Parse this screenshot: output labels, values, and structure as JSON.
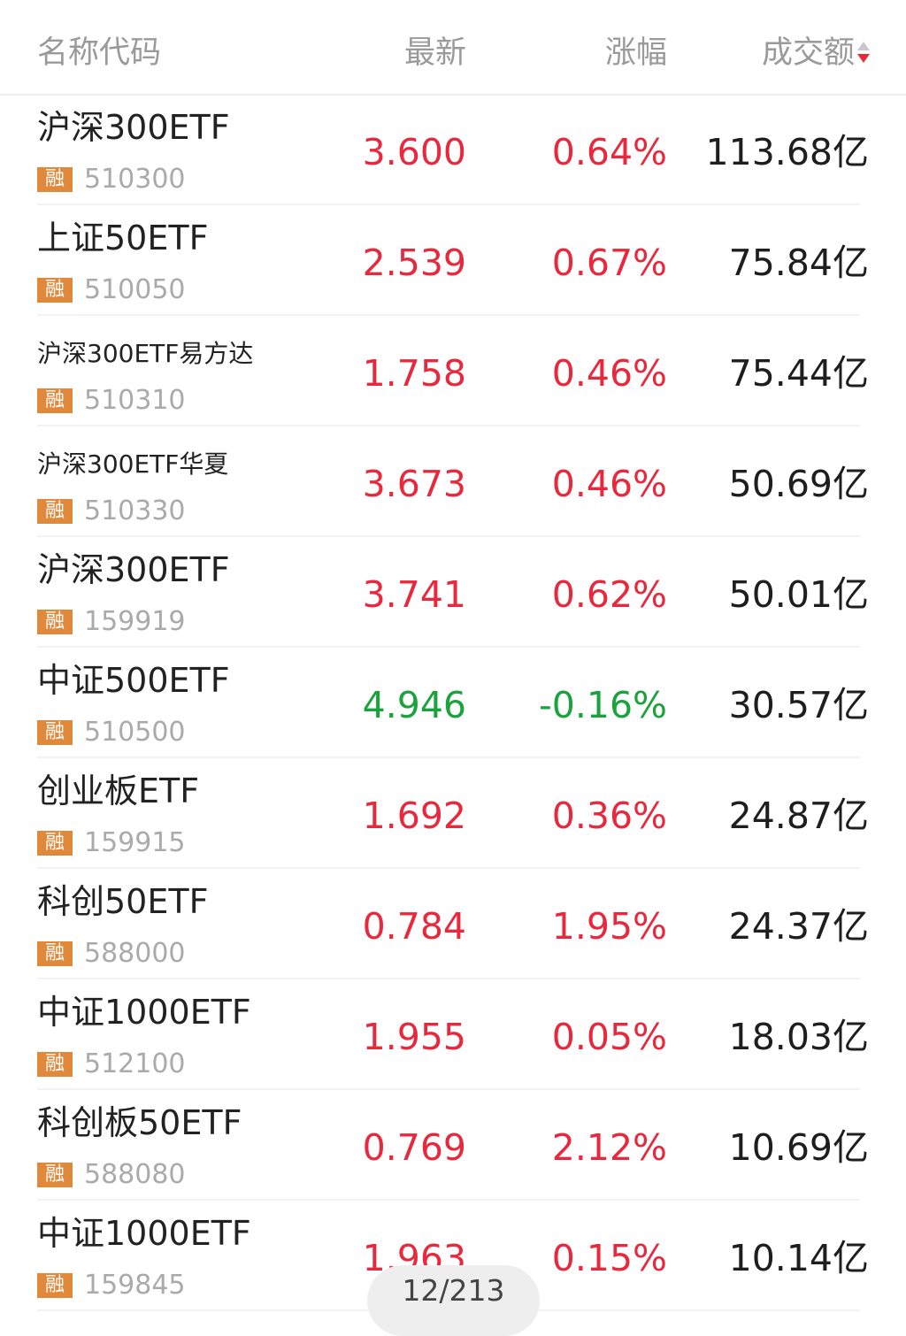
{
  "header": {
    "name": "名称代码",
    "latest": "最新",
    "change": "涨幅",
    "amount": "成交额"
  },
  "colors": {
    "up": "#e8283c",
    "down": "#1aa33c",
    "badge": "#e0893b"
  },
  "badge_label": "融",
  "rows": [
    {
      "name": "沪深300ETF",
      "code": "510300",
      "latest": "3.600",
      "change": "0.64%",
      "amount": "113.68亿",
      "dir": "up",
      "small": false
    },
    {
      "name": "上证50ETF",
      "code": "510050",
      "latest": "2.539",
      "change": "0.67%",
      "amount": "75.84亿",
      "dir": "up",
      "small": false
    },
    {
      "name": "沪深300ETF易方达",
      "code": "510310",
      "latest": "1.758",
      "change": "0.46%",
      "amount": "75.44亿",
      "dir": "up",
      "small": true
    },
    {
      "name": "沪深300ETF华夏",
      "code": "510330",
      "latest": "3.673",
      "change": "0.46%",
      "amount": "50.69亿",
      "dir": "up",
      "small": true
    },
    {
      "name": "沪深300ETF",
      "code": "159919",
      "latest": "3.741",
      "change": "0.62%",
      "amount": "50.01亿",
      "dir": "up",
      "small": false
    },
    {
      "name": "中证500ETF",
      "code": "510500",
      "latest": "4.946",
      "change": "-0.16%",
      "amount": "30.57亿",
      "dir": "down",
      "small": false
    },
    {
      "name": "创业板ETF",
      "code": "159915",
      "latest": "1.692",
      "change": "0.36%",
      "amount": "24.87亿",
      "dir": "up",
      "small": false
    },
    {
      "name": "科创50ETF",
      "code": "588000",
      "latest": "0.784",
      "change": "1.95%",
      "amount": "24.37亿",
      "dir": "up",
      "small": false
    },
    {
      "name": "中证1000ETF",
      "code": "512100",
      "latest": "1.955",
      "change": "0.05%",
      "amount": "18.03亿",
      "dir": "up",
      "small": false
    },
    {
      "name": "科创板50ETF",
      "code": "588080",
      "latest": "0.769",
      "change": "2.12%",
      "amount": "10.69亿",
      "dir": "up",
      "small": false
    },
    {
      "name": "中证1000ETF",
      "code": "159845",
      "latest": "1.963",
      "change": "0.15%",
      "amount": "10.14亿",
      "dir": "up",
      "small": false
    }
  ],
  "pager": "12/213"
}
